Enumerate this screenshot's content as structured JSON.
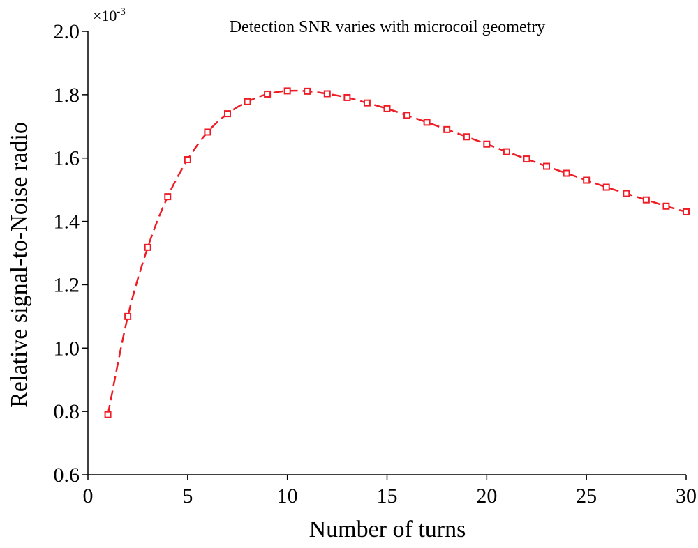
{
  "chart_data": {
    "type": "line",
    "title": "Detection SNR varies with microcoil geometry",
    "xlabel": "Number of turns",
    "ylabel": "Relative signal-to-Noise radio",
    "y_multiplier": {
      "base": "×10",
      "exponent": "-3"
    },
    "xlim": [
      0,
      30
    ],
    "ylim": [
      0.6,
      2.0
    ],
    "xticks": [
      0,
      5,
      10,
      15,
      20,
      25,
      30
    ],
    "xtick_labels": [
      "0",
      "5",
      "10",
      "15",
      "20",
      "25",
      "30"
    ],
    "yticks": [
      0.6,
      0.8,
      1.0,
      1.2,
      1.4,
      1.6,
      1.8,
      2.0
    ],
    "ytick_labels": [
      "0.6",
      "0.8",
      "1.0",
      "1.2",
      "1.4",
      "1.6",
      "1.8",
      "2.0"
    ],
    "grid": false,
    "legend": "none",
    "series": [
      {
        "line_style": "dashed",
        "marker": "square",
        "color": "#ee1c25",
        "x": [
          1,
          2,
          3,
          4,
          5,
          6,
          7,
          8,
          9,
          10,
          11,
          12,
          13,
          14,
          15,
          16,
          17,
          18,
          19,
          20,
          21,
          22,
          23,
          24,
          25,
          26,
          27,
          28,
          29,
          30
        ],
        "values": [
          0.79,
          1.1,
          1.318,
          1.478,
          1.595,
          1.682,
          1.74,
          1.778,
          1.802,
          1.812,
          1.811,
          1.803,
          1.791,
          1.774,
          1.756,
          1.735,
          1.713,
          1.69,
          1.667,
          1.644,
          1.62,
          1.597,
          1.574,
          1.552,
          1.53,
          1.508,
          1.488,
          1.468,
          1.448,
          1.43
        ]
      }
    ]
  }
}
